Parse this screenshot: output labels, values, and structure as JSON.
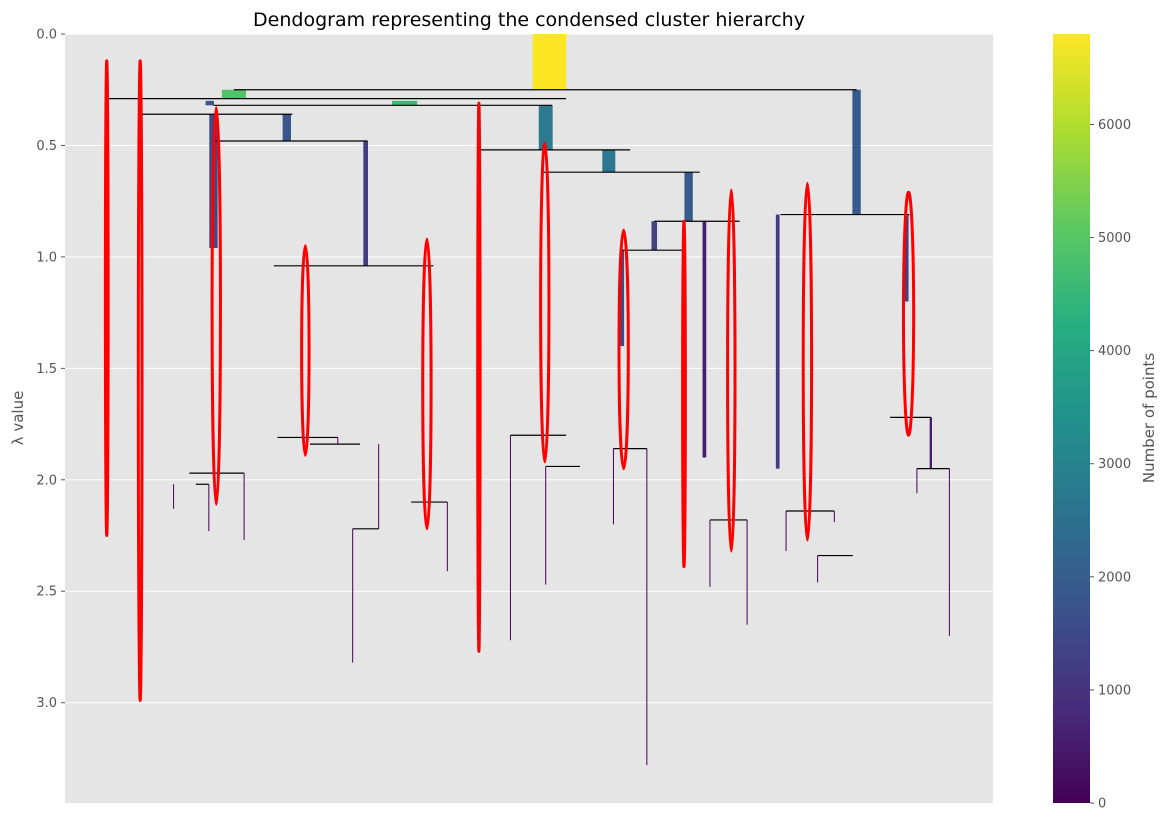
{
  "chart_data": {
    "type": "dendrogram",
    "title": "Dendogram representing the condensed cluster hierarchy",
    "ylabel": "λ value",
    "y_inverted": true,
    "ylim": [
      3.45,
      0.0
    ],
    "yticks": [
      0.0,
      0.5,
      1.0,
      1.5,
      2.0,
      2.5,
      3.0
    ],
    "grid": true,
    "background": "#e5e5e5",
    "colormap": "viridis",
    "colorbar": {
      "label": "Number of points",
      "range": [
        0,
        6800
      ],
      "ticks": [
        0,
        1000,
        2000,
        3000,
        4000,
        5000,
        6000
      ]
    },
    "selected_cluster_color": "#ff0000",
    "x_range": [
      0,
      100
    ],
    "branches": [
      {
        "x": 52.2,
        "w": 3.6,
        "y0": 0.0,
        "y1": 0.25,
        "n": 6800
      },
      {
        "x": 18.2,
        "w": 2.6,
        "y0": 0.25,
        "y1": 0.29,
        "n": 4900
      },
      {
        "x": 85.3,
        "w": 0.9,
        "y0": 0.25,
        "y1": 0.81,
        "n": 1900
      },
      {
        "x": 15.6,
        "w": 0.9,
        "y0": 0.3,
        "y1": 0.32,
        "n": 1700
      },
      {
        "x": 36.6,
        "w": 2.7,
        "y0": 0.3,
        "y1": 0.32,
        "n": 4600
      },
      {
        "x": 51.8,
        "w": 1.5,
        "y0": 0.32,
        "y1": 0.52,
        "n": 2800
      },
      {
        "x": 23.9,
        "w": 0.9,
        "y0": 0.36,
        "y1": 0.48,
        "n": 1800
      },
      {
        "x": 16.0,
        "w": 0.9,
        "y0": 0.36,
        "y1": 0.96,
        "n": 1500
      },
      {
        "x": 58.6,
        "w": 1.4,
        "y0": 0.52,
        "y1": 0.62,
        "n": 2700
      },
      {
        "x": 32.4,
        "w": 0.5,
        "y0": 0.48,
        "y1": 1.04,
        "n": 1200
      },
      {
        "x": 67.2,
        "w": 0.9,
        "y0": 0.62,
        "y1": 0.84,
        "n": 1900
      },
      {
        "x": 63.5,
        "w": 0.6,
        "y0": 0.84,
        "y1": 0.97,
        "n": 1300
      },
      {
        "x": 60.0,
        "w": 0.5,
        "y0": 0.97,
        "y1": 1.4,
        "n": 1500
      },
      {
        "x": 68.9,
        "w": 0.4,
        "y0": 0.84,
        "y1": 1.9,
        "n": 600
      },
      {
        "x": 76.8,
        "w": 0.4,
        "y0": 0.81,
        "y1": 1.95,
        "n": 1200
      },
      {
        "x": 90.7,
        "w": 0.4,
        "y0": 0.81,
        "y1": 1.2,
        "n": 1300
      },
      {
        "x": 93.3,
        "w": 0.25,
        "y0": 1.72,
        "y1": 1.95,
        "n": 500
      }
    ],
    "links": [
      {
        "x1": 4.5,
        "x2": 54.0,
        "y": 0.29
      },
      {
        "x1": 18.2,
        "x2": 85.3,
        "y": 0.25
      },
      {
        "x1": 16.0,
        "x2": 52.5,
        "y": 0.32
      },
      {
        "x1": 8.3,
        "x2": 24.5,
        "y": 0.36
      },
      {
        "x1": 16.2,
        "x2": 32.6,
        "y": 0.48
      },
      {
        "x1": 44.7,
        "x2": 60.9,
        "y": 0.52
      },
      {
        "x1": 51.4,
        "x2": 68.4,
        "y": 0.62
      },
      {
        "x1": 63.5,
        "x2": 72.7,
        "y": 0.84
      },
      {
        "x1": 60.0,
        "x2": 66.9,
        "y": 0.97
      },
      {
        "x1": 77.1,
        "x2": 91.0,
        "y": 0.81
      },
      {
        "x1": 22.5,
        "x2": 39.7,
        "y": 1.04
      },
      {
        "x1": 14.1,
        "x2": 15.5,
        "y": 2.02
      },
      {
        "x1": 13.4,
        "x2": 19.3,
        "y": 1.97
      },
      {
        "x1": 22.9,
        "x2": 29.4,
        "y": 1.81
      },
      {
        "x1": 26.4,
        "x2": 31.8,
        "y": 1.84
      },
      {
        "x1": 31.0,
        "x2": 33.8,
        "y": 2.22
      },
      {
        "x1": 37.3,
        "x2": 41.2,
        "y": 2.1
      },
      {
        "x1": 48.0,
        "x2": 54.0,
        "y": 1.8
      },
      {
        "x1": 51.8,
        "x2": 55.5,
        "y": 1.94
      },
      {
        "x1": 59.1,
        "x2": 62.7,
        "y": 1.86
      },
      {
        "x1": 69.5,
        "x2": 73.5,
        "y": 2.18
      },
      {
        "x1": 77.7,
        "x2": 82.9,
        "y": 2.14
      },
      {
        "x1": 81.1,
        "x2": 84.9,
        "y": 2.34
      },
      {
        "x1": 88.9,
        "x2": 93.3,
        "y": 1.72
      },
      {
        "x1": 91.8,
        "x2": 95.3,
        "y": 1.95
      }
    ],
    "leaves": [
      {
        "x": 11.7,
        "y0": 2.02,
        "y1": 2.13
      },
      {
        "x": 15.5,
        "y0": 2.02,
        "y1": 2.23
      },
      {
        "x": 19.3,
        "y0": 1.97,
        "y1": 2.27
      },
      {
        "x": 29.4,
        "y0": 1.81,
        "y1": 1.84
      },
      {
        "x": 31.0,
        "y0": 2.22,
        "y1": 2.82
      },
      {
        "x": 33.8,
        "y0": 1.84,
        "y1": 2.22
      },
      {
        "x": 41.2,
        "y0": 2.1,
        "y1": 2.41
      },
      {
        "x": 48.0,
        "y0": 1.8,
        "y1": 2.72
      },
      {
        "x": 51.8,
        "y0": 1.94,
        "y1": 2.47
      },
      {
        "x": 59.1,
        "y0": 1.86,
        "y1": 2.2
      },
      {
        "x": 62.7,
        "y0": 1.86,
        "y1": 3.28
      },
      {
        "x": 69.5,
        "y0": 2.18,
        "y1": 2.48
      },
      {
        "x": 73.5,
        "y0": 2.18,
        "y1": 2.65
      },
      {
        "x": 77.7,
        "y0": 2.14,
        "y1": 2.32
      },
      {
        "x": 81.1,
        "y0": 2.34,
        "y1": 2.46
      },
      {
        "x": 82.9,
        "y0": 2.14,
        "y1": 2.19
      },
      {
        "x": 91.8,
        "y0": 1.95,
        "y1": 2.06
      },
      {
        "x": 95.3,
        "y0": 1.95,
        "y1": 2.7
      }
    ],
    "selected_clusters": [
      {
        "cx": 4.5,
        "rx": 0.15,
        "y0": 0.12,
        "y1": 2.25
      },
      {
        "cx": 8.1,
        "rx": 0.2,
        "y0": 0.12,
        "y1": 2.99
      },
      {
        "cx": 16.3,
        "rx": 0.45,
        "y0": 0.33,
        "y1": 2.11
      },
      {
        "cx": 25.9,
        "rx": 0.4,
        "y0": 0.95,
        "y1": 1.89
      },
      {
        "cx": 39.0,
        "rx": 0.45,
        "y0": 0.92,
        "y1": 2.22
      },
      {
        "cx": 44.6,
        "rx": 0.12,
        "y0": 0.31,
        "y1": 2.77
      },
      {
        "cx": 51.7,
        "rx": 0.45,
        "y0": 0.49,
        "y1": 1.92
      },
      {
        "cx": 60.2,
        "rx": 0.5,
        "y0": 0.88,
        "y1": 1.95
      },
      {
        "cx": 66.7,
        "rx": 0.15,
        "y0": 0.84,
        "y1": 2.39
      },
      {
        "cx": 71.8,
        "rx": 0.4,
        "y0": 0.7,
        "y1": 2.32
      },
      {
        "cx": 80.0,
        "rx": 0.45,
        "y0": 0.67,
        "y1": 2.27
      },
      {
        "cx": 90.9,
        "rx": 0.55,
        "y0": 0.71,
        "y1": 1.8
      }
    ]
  }
}
